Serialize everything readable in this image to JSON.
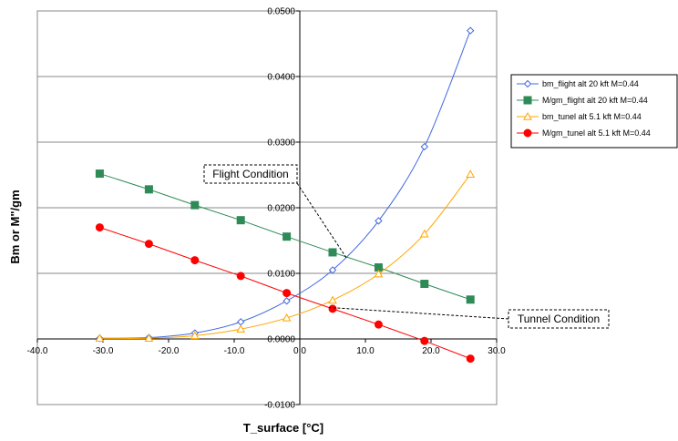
{
  "chart_data": {
    "type": "scatter",
    "title": "",
    "xlabel": "T_surface [°C]",
    "ylabel": "Bm or M\"/gm",
    "xlim": [
      -40,
      30
    ],
    "ylim": [
      -0.01,
      0.05
    ],
    "x_ticks": [
      -40,
      -30,
      -20,
      -10,
      0,
      10,
      20,
      30
    ],
    "x_tick_labels": [
      "-40.0",
      "-30.0",
      "-20.0",
      "-10.0",
      "0.0",
      "10.0",
      "20.0",
      "30.0"
    ],
    "y_ticks": [
      -0.01,
      0,
      0.01,
      0.02,
      0.03,
      0.04,
      0.05
    ],
    "y_tick_labels": [
      "-0.0100",
      "0.0000",
      "0.0100",
      "0.0200",
      "0.0300",
      "0.0400",
      "0.0500"
    ],
    "grid": "horizontal",
    "legend_position": "right",
    "series": [
      {
        "name": "bm_flight alt 20 kft M=0.44",
        "color": "#4169E1",
        "marker": "diamond-open",
        "x": [
          -30.5,
          -23,
          -16,
          -9,
          -2,
          5,
          12,
          19,
          26
        ],
        "y": [
          0.0001,
          0.0002,
          0.0009,
          0.0026,
          0.0058,
          0.0105,
          0.018,
          0.0293,
          0.047
        ]
      },
      {
        "name": "M/gm_flight alt 20 kft M=0.44",
        "color": "#2E8B57",
        "marker": "square",
        "x": [
          -30.5,
          -23,
          -16,
          -9,
          -2,
          5,
          12,
          19,
          26
        ],
        "y": [
          0.0252,
          0.0228,
          0.0204,
          0.0181,
          0.0156,
          0.0132,
          0.0109,
          0.0084,
          0.006
        ]
      },
      {
        "name": "bm_tunel alt 5.1 kft M=0.44",
        "color": "#FFA500",
        "marker": "triangle-open",
        "x": [
          -30.5,
          -23,
          -16,
          -9,
          -2,
          5,
          12,
          19,
          26
        ],
        "y": [
          0.0001,
          0.0001,
          0.0005,
          0.0015,
          0.0032,
          0.0059,
          0.0099,
          0.016,
          0.0251
        ]
      },
      {
        "name": "M/gm_tunel alt 5.1 kft M=0.44",
        "color": "#FF0000",
        "marker": "circle",
        "x": [
          -30.5,
          -23,
          -16,
          -9,
          -2,
          5,
          12,
          19,
          26
        ],
        "y": [
          0.017,
          0.0145,
          0.012,
          0.0096,
          0.007,
          0.0046,
          0.0022,
          -0.0003,
          -0.003
        ]
      }
    ],
    "annotations": [
      {
        "text": "Flight Condition",
        "points_to": {
          "x": 7.2,
          "y": 0.0122
        }
      },
      {
        "text": "Tunnel Condition",
        "points_to": {
          "x": 4.5,
          "y": 0.0048
        }
      }
    ]
  }
}
